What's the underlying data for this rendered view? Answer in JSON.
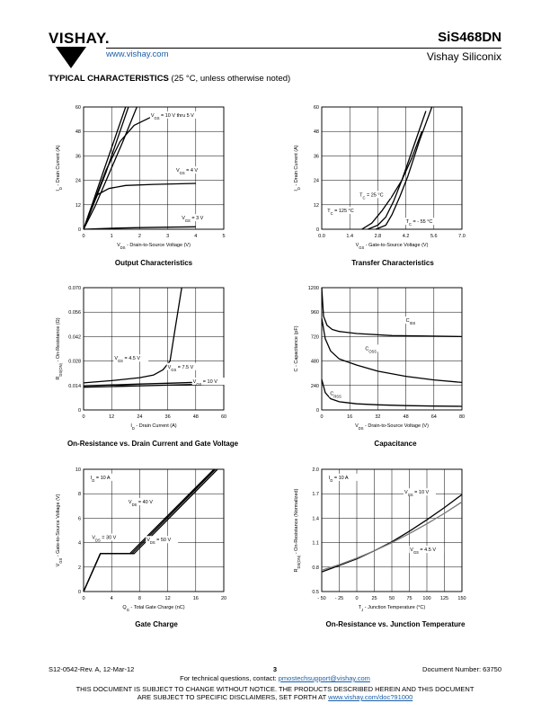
{
  "header": {
    "logo": "VISHAY.",
    "website": "www.vishay.com",
    "part_number": "SiS468DN",
    "company": "Vishay Siliconix"
  },
  "section_title": {
    "bold": "TYPICAL CHARACTERISTICS",
    "normal": " (25 °C, unless otherwise noted)"
  },
  "chart_data": [
    {
      "type": "line",
      "title": "Output Characteristics",
      "xlabel": "V_DS - Drain-to-Source Voltage (V)",
      "ylabel": "I_D - Drain Current (A)",
      "xlim": [
        0,
        5
      ],
      "ylim": [
        0,
        60
      ],
      "xticks": [
        "0",
        "1",
        "2",
        "3",
        "4",
        "5"
      ],
      "yticks": [
        "0",
        "12",
        "24",
        "36",
        "48",
        "60"
      ],
      "grid": true,
      "annotations": [
        "V_GS = 10 V thru 5 V",
        "V_GS = 4 V",
        "V_GS = 3 V"
      ],
      "series": [
        {
          "x": [
            0,
            0.3,
            0.7,
            1.1,
            1.5
          ],
          "y": [
            0,
            12,
            28,
            44,
            60
          ]
        },
        {
          "x": [
            0,
            0.35,
            0.8,
            1.2,
            1.6
          ],
          "y": [
            0,
            12,
            28,
            44,
            60
          ]
        },
        {
          "x": [
            0,
            0.4,
            0.9,
            1.4,
            1.9
          ],
          "y": [
            0,
            11,
            27,
            43,
            60
          ]
        },
        {
          "x": [
            0,
            0.3,
            0.8,
            1.3,
            1.8,
            2.4,
            3
          ],
          "y": [
            0,
            11,
            29,
            43,
            51,
            55,
            56
          ]
        },
        {
          "x": [
            0,
            0.2,
            0.5,
            0.9,
            1.5,
            2.5,
            4
          ],
          "y": [
            0,
            8,
            17,
            20,
            21.5,
            22,
            22.5
          ]
        },
        {
          "x": [
            0,
            1,
            2,
            3,
            4
          ],
          "y": [
            0,
            0.5,
            0.8,
            1,
            1.2
          ]
        }
      ]
    },
    {
      "type": "line",
      "title": "Transfer Characteristics",
      "xlabel": "V_GS - Gate-to-Source Voltage (V)",
      "ylabel": "I_D - Drain Current (A)",
      "xlim": [
        0,
        7
      ],
      "ylim": [
        0,
        60
      ],
      "xticks": [
        "0.0",
        "1.4",
        "2.8",
        "4.2",
        "5.6",
        "7.0"
      ],
      "yticks": [
        "0",
        "12",
        "24",
        "36",
        "48",
        "60"
      ],
      "grid": true,
      "annotations": [
        "T_C = 25 °C",
        "T_C = 125 °C",
        "T_C = - 55 °C"
      ],
      "series": [
        {
          "name": "T_C = 25 °C",
          "x": [
            2.3,
            2.8,
            3.2,
            3.6,
            4.0,
            4.6,
            5.2
          ],
          "y": [
            0,
            2,
            6,
            14,
            24,
            41,
            58
          ]
        },
        {
          "name": "T_C = 125 °C",
          "x": [
            2.0,
            2.5,
            3.0,
            3.5,
            4.0,
            4.5,
            5.0
          ],
          "y": [
            0,
            3,
            9,
            16,
            24,
            35,
            48
          ]
        },
        {
          "name": "T_C = - 55 °C",
          "x": [
            2.7,
            3.2,
            3.5,
            3.9,
            4.3,
            4.9,
            5.5
          ],
          "y": [
            0,
            2,
            7,
            16,
            26,
            44,
            60
          ]
        }
      ]
    },
    {
      "type": "line",
      "title": "On-Resistance vs. Drain Current and Gate Voltage",
      "xlabel": "I_D - Drain Current (A)",
      "ylabel": "R_DS(on) - On-Resistance (Ω)",
      "xlim": [
        0,
        60
      ],
      "ylim": [
        0,
        0.07
      ],
      "xticks": [
        "0",
        "12",
        "24",
        "36",
        "48",
        "60"
      ],
      "yticks": [
        "0",
        "0.014",
        "0.028",
        "0.042",
        "0.056",
        "0.070"
      ],
      "grid": true,
      "annotations": [
        "V_GS = 4.5 V",
        "V_GS = 7.5 V",
        "V_GS = 10 V"
      ],
      "series": [
        {
          "name": "V_GS = 4.5 V",
          "x": [
            0,
            12,
            24,
            30,
            34,
            37,
            39,
            42
          ],
          "y": [
            0.0155,
            0.0168,
            0.0185,
            0.02,
            0.023,
            0.028,
            0.045,
            0.07
          ]
        },
        {
          "name": "V_GS = 7.5 V",
          "x": [
            0,
            12,
            24,
            36,
            48,
            60
          ],
          "y": [
            0.0138,
            0.0143,
            0.0148,
            0.0153,
            0.0158,
            0.0163
          ]
        },
        {
          "name": "V_GS = 10 V",
          "x": [
            0,
            12,
            24,
            36,
            48,
            60
          ],
          "y": [
            0.013,
            0.0134,
            0.0138,
            0.0142,
            0.0146,
            0.015
          ]
        }
      ]
    },
    {
      "type": "line",
      "title": "Capacitance",
      "xlabel": "V_DS - Drain-to-Source Voltage (V)",
      "ylabel": "C - Capacitance (pF)",
      "xlim": [
        0,
        80
      ],
      "ylim": [
        0,
        1200
      ],
      "xticks": [
        "0",
        "16",
        "32",
        "48",
        "64",
        "80"
      ],
      "yticks": [
        "0",
        "240",
        "480",
        "720",
        "960",
        "1200"
      ],
      "grid": true,
      "annotations": [
        "C_iss",
        "C_oss",
        "C_rss"
      ],
      "series": [
        {
          "name": "C_iss",
          "x": [
            0,
            1,
            3,
            6,
            10,
            20,
            40,
            60,
            80
          ],
          "y": [
            1200,
            920,
            830,
            790,
            770,
            750,
            730,
            725,
            720
          ]
        },
        {
          "name": "C_oss",
          "x": [
            0,
            2,
            5,
            10,
            20,
            32,
            48,
            64,
            80
          ],
          "y": [
            900,
            700,
            580,
            500,
            440,
            380,
            330,
            295,
            270
          ]
        },
        {
          "name": "C_rss",
          "x": [
            0,
            2,
            5,
            10,
            20,
            32,
            48,
            64,
            80
          ],
          "y": [
            300,
            170,
            110,
            80,
            60,
            50,
            42,
            38,
            35
          ]
        }
      ]
    },
    {
      "type": "line",
      "title": "Gate Charge",
      "xlabel": "Q_g - Total Gate Charge (nC)",
      "ylabel": "V_GS - Gate-to-Source Voltage (V)",
      "xlim": [
        0,
        20
      ],
      "ylim": [
        0,
        10
      ],
      "xticks": [
        "0",
        "4",
        "8",
        "12",
        "16",
        "20"
      ],
      "yticks": [
        "0",
        "2",
        "4",
        "6",
        "8",
        "10"
      ],
      "grid": true,
      "annotations": [
        "I_D = 10 A",
        "V_DS = 40 V",
        "V_DS = 30 V",
        "V_DS = 50 V"
      ],
      "series": [
        {
          "name": "V_DS = 30 V",
          "x": [
            0,
            2.4,
            6.6,
            18.6
          ],
          "y": [
            0,
            3.1,
            3.1,
            10
          ]
        },
        {
          "name": "V_DS = 40 V",
          "x": [
            0,
            2.4,
            6.9,
            18.8
          ],
          "y": [
            0,
            3.1,
            3.1,
            10
          ]
        },
        {
          "name": "V_DS = 50 V",
          "x": [
            0,
            2.4,
            7.2,
            19.1
          ],
          "y": [
            0,
            3.1,
            3.1,
            10
          ]
        }
      ]
    },
    {
      "type": "line",
      "title": "On-Resistance vs. Junction Temperature",
      "xlabel": "T_J - Junction Temperature (°C)",
      "ylabel": "R_DS(on) - On-Resistance (Normalized)",
      "xlim": [
        -50,
        150
      ],
      "ylim": [
        0.5,
        2.0
      ],
      "xticks": [
        "- 50",
        "- 25",
        "0",
        "25",
        "50",
        "75",
        "100",
        "125",
        "150"
      ],
      "yticks": [
        "0.5",
        "0.8",
        "1.1",
        "1.4",
        "1.7",
        "2.0"
      ],
      "grid": true,
      "annotations": [
        "I_D = 10 A",
        "V_GS = 10 V",
        "V_GS = 4.5 V"
      ],
      "series": [
        {
          "name": "V_GS = 10 V",
          "x": [
            -50,
            -25,
            0,
            25,
            50,
            75,
            100,
            125,
            150
          ],
          "y": [
            0.74,
            0.82,
            0.9,
            1.0,
            1.11,
            1.24,
            1.38,
            1.53,
            1.69
          ]
        },
        {
          "name": "V_GS = 4.5 V",
          "x": [
            -50,
            -25,
            0,
            25,
            50,
            75,
            100,
            125,
            150
          ],
          "y": [
            0.76,
            0.83,
            0.91,
            1.0,
            1.1,
            1.21,
            1.33,
            1.46,
            1.6
          ]
        }
      ]
    }
  ],
  "footer": {
    "doc_rev": "S12-0542-Rev. A, 12-Mar-12",
    "page": "3",
    "doc_number": "Document Number: 63750",
    "contact_prefix": "For technical questions, contact: ",
    "contact_email": "pmostechsupport@vishay.com",
    "disclaimer1": "THIS DOCUMENT IS SUBJECT TO CHANGE WITHOUT NOTICE. THE PRODUCTS DESCRIBED HEREIN AND THIS DOCUMENT",
    "disclaimer2_prefix": "ARE SUBJECT TO SPECIFIC DISCLAIMERS, SET FORTH AT ",
    "disclaimer2_link": "www.vishay.com/doc?91000"
  }
}
